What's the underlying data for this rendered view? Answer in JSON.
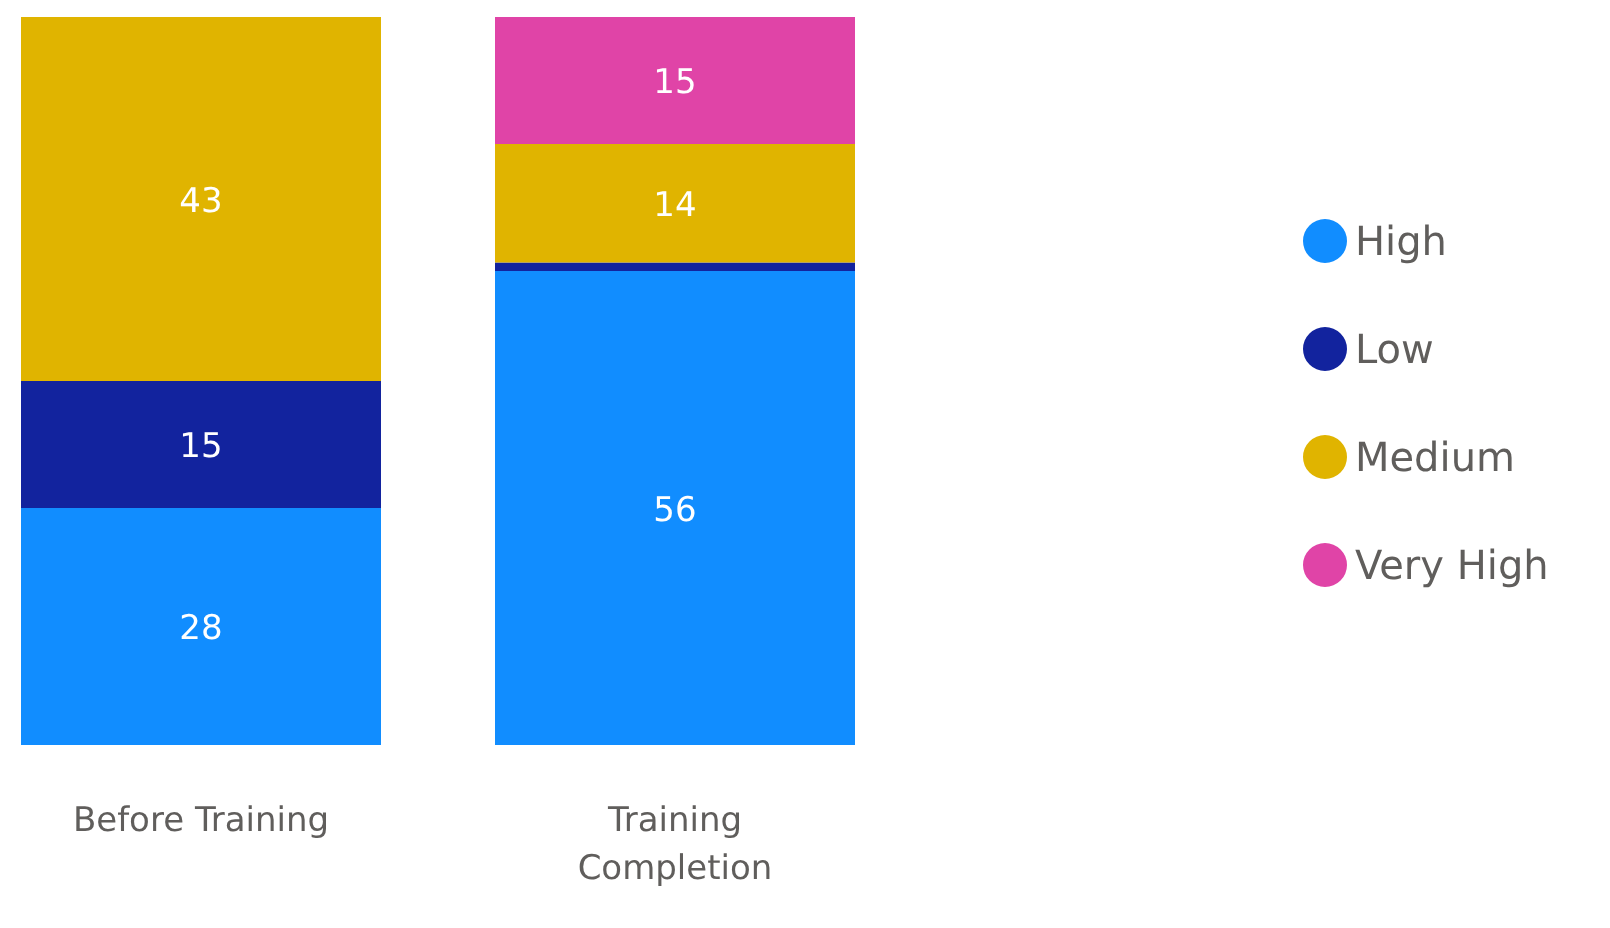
{
  "chart_data": {
    "type": "bar",
    "stacked": true,
    "categories": [
      "Before Training",
      "Training Completion"
    ],
    "series": [
      {
        "name": "High",
        "color": "#118dff",
        "values": [
          28,
          56
        ],
        "value_labels": [
          "28",
          "56"
        ]
      },
      {
        "name": "Low",
        "color": "#12239e",
        "values": [
          15,
          1
        ],
        "value_labels": [
          "15",
          null
        ]
      },
      {
        "name": "Medium",
        "color": "#e0b400",
        "values": [
          43,
          14
        ],
        "value_labels": [
          "43",
          "14"
        ]
      },
      {
        "name": "Very High",
        "color": "#e044a7",
        "values": [
          null,
          15
        ],
        "value_labels": [
          null,
          "15"
        ]
      }
    ],
    "ylim": [
      0,
      86
    ],
    "tick_labels": "x",
    "legend": "right",
    "marker": "circle",
    "grid": false
  }
}
